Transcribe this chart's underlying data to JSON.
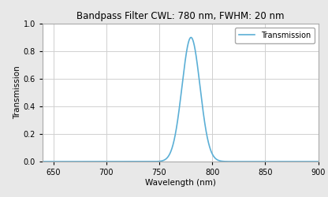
{
  "title": "Bandpass Filter CWL: 780 nm, FWHM: 20 nm",
  "xlabel": "Wavelength (nm)",
  "ylabel": "Transmission",
  "xmin": 640,
  "xmax": 900,
  "ymin": 0.0,
  "ymax": 1.0,
  "xticks": [
    650,
    700,
    750,
    800,
    850,
    900
  ],
  "yticks": [
    0.0,
    0.2,
    0.4,
    0.6,
    0.8,
    1.0
  ],
  "cwl": 780,
  "fwhm": 20,
  "peak_transmission": 0.9,
  "line_color": "#5bafd6",
  "line_width": 1.2,
  "legend_label": "Transmission",
  "grid_color": "#d0d0d0",
  "plot_bg_color": "#ffffff",
  "fig_bg_color": "#e8e8e8",
  "title_fontsize": 8.5,
  "label_fontsize": 7.5,
  "tick_fontsize": 7,
  "legend_fontsize": 7
}
